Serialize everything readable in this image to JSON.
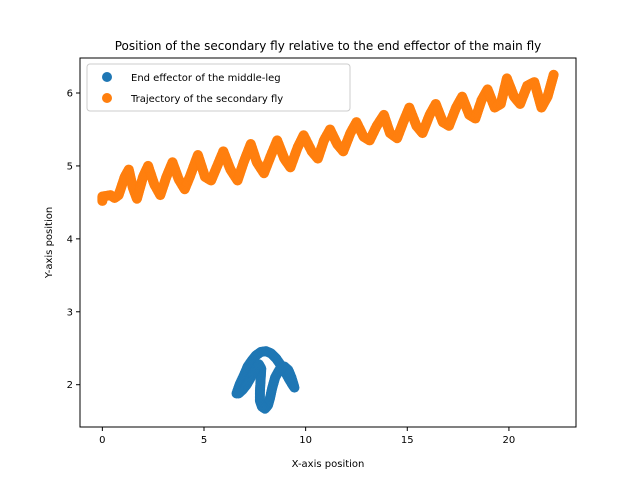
{
  "chart_data": {
    "type": "scatter",
    "title": "Position of the secondary fly relative to the end effector of the main fly",
    "xlabel": "X-axis position",
    "ylabel": "Y-axis position",
    "xlim": [
      -1.1,
      23.3
    ],
    "ylim": [
      1.42,
      6.48
    ],
    "xticks": [
      0,
      5,
      10,
      15,
      20
    ],
    "yticks": [
      2,
      3,
      4,
      5,
      6
    ],
    "grid": false,
    "legend_position": "top-left",
    "series": [
      {
        "name": "End effector of the middle-leg",
        "color": "#1f77b4",
        "points": [
          [
            6.6,
            1.88
          ],
          [
            6.75,
            2.0
          ],
          [
            6.95,
            2.12
          ],
          [
            7.15,
            2.25
          ],
          [
            7.35,
            2.33
          ],
          [
            7.55,
            2.4
          ],
          [
            7.8,
            2.45
          ],
          [
            8.05,
            2.46
          ],
          [
            8.3,
            2.43
          ],
          [
            8.55,
            2.36
          ],
          [
            8.8,
            2.26
          ],
          [
            9.0,
            2.17
          ],
          [
            9.2,
            2.07
          ],
          [
            9.35,
            2.0
          ],
          [
            9.45,
            1.96
          ],
          [
            9.3,
            2.1
          ],
          [
            9.15,
            2.2
          ],
          [
            8.95,
            2.25
          ],
          [
            8.7,
            2.2
          ],
          [
            8.5,
            2.1
          ],
          [
            8.35,
            1.95
          ],
          [
            8.25,
            1.82
          ],
          [
            8.15,
            1.72
          ],
          [
            8.0,
            1.67
          ],
          [
            7.85,
            1.7
          ],
          [
            7.75,
            1.78
          ],
          [
            7.75,
            1.9
          ],
          [
            7.78,
            2.05
          ],
          [
            7.82,
            2.22
          ],
          [
            7.7,
            2.28
          ],
          [
            7.5,
            2.2
          ],
          [
            7.3,
            2.1
          ],
          [
            7.1,
            2.0
          ],
          [
            6.9,
            1.93
          ],
          [
            6.7,
            1.88
          ]
        ]
      },
      {
        "name": "Trajectory of the secondary fly",
        "color": "#ff7f0e",
        "points": [
          [
            0.0,
            4.52
          ],
          [
            0.0,
            4.55
          ],
          [
            0.0,
            4.58
          ],
          [
            0.4,
            4.6
          ],
          [
            0.6,
            4.56
          ],
          [
            0.8,
            4.6
          ],
          [
            1.1,
            4.85
          ],
          [
            1.3,
            4.95
          ],
          [
            1.5,
            4.7
          ],
          [
            1.7,
            4.55
          ],
          [
            2.0,
            4.85
          ],
          [
            2.25,
            5.0
          ],
          [
            2.55,
            4.75
          ],
          [
            2.85,
            4.6
          ],
          [
            3.15,
            4.85
          ],
          [
            3.45,
            5.05
          ],
          [
            3.75,
            4.82
          ],
          [
            4.05,
            4.68
          ],
          [
            4.3,
            4.85
          ],
          [
            4.7,
            5.15
          ],
          [
            5.05,
            4.85
          ],
          [
            5.35,
            4.8
          ],
          [
            5.65,
            5.0
          ],
          [
            5.95,
            5.2
          ],
          [
            6.3,
            4.95
          ],
          [
            6.65,
            4.8
          ],
          [
            6.95,
            5.05
          ],
          [
            7.3,
            5.3
          ],
          [
            7.6,
            5.05
          ],
          [
            7.95,
            4.9
          ],
          [
            8.3,
            5.15
          ],
          [
            8.6,
            5.35
          ],
          [
            8.95,
            5.1
          ],
          [
            9.25,
            4.98
          ],
          [
            9.6,
            5.25
          ],
          [
            9.9,
            5.42
          ],
          [
            10.3,
            5.2
          ],
          [
            10.6,
            5.1
          ],
          [
            10.9,
            5.35
          ],
          [
            11.2,
            5.5
          ],
          [
            11.55,
            5.3
          ],
          [
            11.85,
            5.2
          ],
          [
            12.2,
            5.45
          ],
          [
            12.5,
            5.6
          ],
          [
            12.85,
            5.4
          ],
          [
            13.15,
            5.35
          ],
          [
            13.5,
            5.55
          ],
          [
            13.85,
            5.7
          ],
          [
            14.15,
            5.45
          ],
          [
            14.5,
            5.38
          ],
          [
            14.8,
            5.6
          ],
          [
            15.1,
            5.8
          ],
          [
            15.45,
            5.55
          ],
          [
            15.75,
            5.45
          ],
          [
            16.1,
            5.7
          ],
          [
            16.4,
            5.85
          ],
          [
            16.75,
            5.6
          ],
          [
            17.05,
            5.55
          ],
          [
            17.4,
            5.8
          ],
          [
            17.7,
            5.95
          ],
          [
            18.05,
            5.7
          ],
          [
            18.35,
            5.65
          ],
          [
            18.65,
            5.9
          ],
          [
            18.95,
            6.05
          ],
          [
            19.3,
            5.8
          ],
          [
            19.6,
            5.85
          ],
          [
            19.9,
            6.2
          ],
          [
            20.25,
            5.95
          ],
          [
            20.55,
            5.85
          ],
          [
            20.9,
            6.1
          ],
          [
            21.25,
            6.15
          ],
          [
            21.6,
            5.8
          ],
          [
            21.9,
            5.95
          ],
          [
            22.1,
            6.15
          ],
          [
            22.2,
            6.25
          ]
        ]
      }
    ]
  }
}
